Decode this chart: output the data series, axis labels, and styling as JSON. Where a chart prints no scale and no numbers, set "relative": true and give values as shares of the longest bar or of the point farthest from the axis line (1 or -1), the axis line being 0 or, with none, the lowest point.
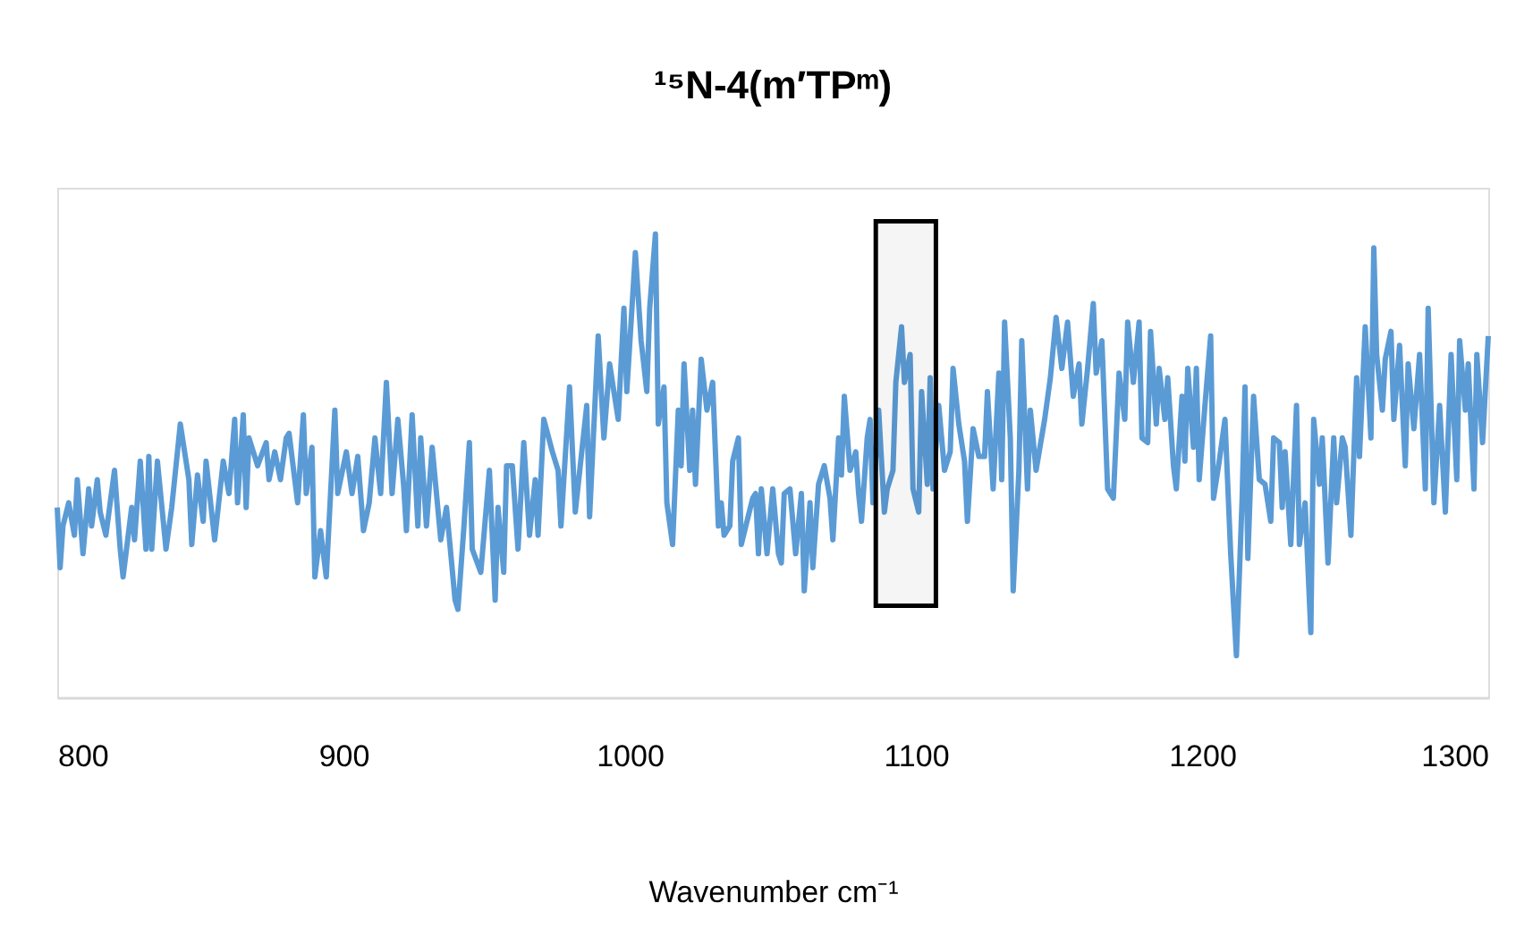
{
  "chart_data": {
    "type": "line",
    "title": "¹⁵N-4(m′TPᵐ)",
    "xlabel": "Wavenumber cm⁻¹",
    "relative": true,
    "xlim": [
      800,
      1300
    ],
    "xticks": [
      800,
      900,
      1000,
      1100,
      1200,
      1300
    ],
    "grid": false,
    "marker": "none",
    "line_style": "solid",
    "tick_labels": "x",
    "bands": [
      {
        "axis": "x",
        "from": 1086,
        "to": 1107,
        "label": null,
        "color": "#000000"
      }
    ],
    "series": [
      {
        "color": "#5b9bd5",
        "x": [
          800,
          801,
          802,
          804,
          806,
          807,
          809,
          811,
          812,
          814,
          815,
          817,
          820,
          822,
          823,
          826,
          827,
          829,
          831,
          832,
          833,
          835,
          838,
          840,
          843,
          846,
          847,
          849,
          851,
          852,
          855,
          858,
          860,
          862,
          863,
          865,
          866,
          867,
          870,
          873,
          874,
          876,
          878,
          880,
          881,
          884,
          886,
          887,
          889,
          890,
          892,
          894,
          897,
          898,
          901,
          903,
          905,
          907,
          909,
          911,
          913,
          915,
          917,
          919,
          921,
          922,
          924,
          926,
          927,
          929,
          931,
          934,
          936,
          939,
          940,
          942,
          944,
          945,
          948,
          951,
          953,
          954,
          956,
          957,
          959,
          961,
          963,
          965,
          967,
          968,
          970,
          973,
          975,
          976,
          979,
          981,
          985,
          986,
          989,
          991,
          993,
          996,
          998,
          999,
          1002,
          1004,
          1006,
          1007,
          1009,
          1010,
          1012,
          1013,
          1015,
          1017,
          1018,
          1019,
          1021,
          1022,
          1023,
          1025,
          1027,
          1029,
          1031,
          1032,
          1033,
          1035,
          1036,
          1038,
          1039,
          1041,
          1043,
          1044,
          1045,
          1046,
          1048,
          1050,
          1052,
          1053,
          1054,
          1056,
          1058,
          1060,
          1061,
          1063,
          1064,
          1066,
          1068,
          1070,
          1071,
          1073,
          1074,
          1075,
          1077,
          1079,
          1080,
          1081,
          1083,
          1084,
          1085,
          1087,
          1089,
          1090,
          1092,
          1093,
          1095,
          1096,
          1098,
          1099,
          1101,
          1102,
          1104,
          1105,
          1106,
          1108,
          1110,
          1112,
          1113,
          1115,
          1117,
          1118,
          1120,
          1122,
          1124,
          1125,
          1127,
          1129,
          1130,
          1131,
          1133,
          1134,
          1136,
          1137,
          1139,
          1140,
          1142,
          1145,
          1147,
          1149,
          1151,
          1153,
          1155,
          1157,
          1158,
          1160,
          1162,
          1163,
          1165,
          1167,
          1169,
          1171,
          1173,
          1174,
          1176,
          1178,
          1179,
          1181,
          1182,
          1184,
          1185,
          1187,
          1188,
          1190,
          1191,
          1193,
          1194,
          1195,
          1197,
          1198,
          1199,
          1201,
          1203,
          1204,
          1206,
          1208,
          1210,
          1212,
          1214,
          1215,
          1216,
          1218,
          1220,
          1222,
          1224,
          1225,
          1227,
          1228,
          1229,
          1231,
          1233,
          1234,
          1236,
          1238,
          1239,
          1241,
          1242,
          1244,
          1246,
          1247,
          1249,
          1250,
          1252,
          1254,
          1255,
          1257,
          1259,
          1260,
          1261,
          1263,
          1264,
          1266,
          1267,
          1269,
          1271,
          1272,
          1274,
          1276,
          1278,
          1279,
          1281,
          1283,
          1285,
          1287,
          1289,
          1290,
          1292,
          1293,
          1295,
          1296,
          1298,
          1300
        ],
        "values": [
          0.41,
          0.28,
          0.37,
          0.42,
          0.35,
          0.47,
          0.31,
          0.45,
          0.37,
          0.47,
          0.4,
          0.35,
          0.49,
          0.32,
          0.26,
          0.41,
          0.34,
          0.51,
          0.32,
          0.52,
          0.32,
          0.51,
          0.32,
          0.41,
          0.59,
          0.47,
          0.33,
          0.48,
          0.38,
          0.51,
          0.34,
          0.51,
          0.44,
          0.6,
          0.42,
          0.61,
          0.41,
          0.56,
          0.5,
          0.55,
          0.47,
          0.53,
          0.47,
          0.56,
          0.57,
          0.42,
          0.61,
          0.44,
          0.54,
          0.26,
          0.36,
          0.26,
          0.62,
          0.44,
          0.53,
          0.44,
          0.52,
          0.36,
          0.42,
          0.56,
          0.44,
          0.68,
          0.44,
          0.6,
          0.46,
          0.36,
          0.61,
          0.37,
          0.56,
          0.37,
          0.54,
          0.34,
          0.41,
          0.21,
          0.19,
          0.36,
          0.55,
          0.32,
          0.27,
          0.49,
          0.21,
          0.41,
          0.27,
          0.5,
          0.5,
          0.32,
          0.55,
          0.35,
          0.47,
          0.35,
          0.6,
          0.53,
          0.49,
          0.37,
          0.67,
          0.4,
          0.63,
          0.39,
          0.78,
          0.56,
          0.72,
          0.6,
          0.84,
          0.66,
          0.96,
          0.77,
          0.66,
          0.84,
          1.0,
          0.59,
          0.67,
          0.42,
          0.33,
          0.62,
          0.5,
          0.72,
          0.49,
          0.62,
          0.46,
          0.73,
          0.62,
          0.68,
          0.37,
          0.42,
          0.35,
          0.37,
          0.51,
          0.56,
          0.33,
          0.38,
          0.43,
          0.44,
          0.31,
          0.45,
          0.31,
          0.45,
          0.31,
          0.29,
          0.44,
          0.45,
          0.31,
          0.44,
          0.23,
          0.42,
          0.28,
          0.46,
          0.5,
          0.43,
          0.34,
          0.56,
          0.48,
          0.65,
          0.49,
          0.53,
          0.44,
          0.38,
          0.56,
          0.6,
          0.42,
          0.62,
          0.4,
          0.45,
          0.49,
          0.68,
          0.8,
          0.68,
          0.74,
          0.45,
          0.4,
          0.66,
          0.46,
          0.69,
          0.45,
          0.63,
          0.49,
          0.53,
          0.71,
          0.59,
          0.51,
          0.38,
          0.58,
          0.52,
          0.52,
          0.66,
          0.45,
          0.7,
          0.47,
          0.81,
          0.56,
          0.23,
          0.49,
          0.77,
          0.45,
          0.62,
          0.49,
          0.6,
          0.69,
          0.82,
          0.71,
          0.81,
          0.65,
          0.72,
          0.59,
          0.71,
          0.85,
          0.7,
          0.77,
          0.45,
          0.43,
          0.7,
          0.6,
          0.81,
          0.68,
          0.81,
          0.56,
          0.55,
          0.79,
          0.59,
          0.71,
          0.6,
          0.69,
          0.5,
          0.45,
          0.65,
          0.51,
          0.71,
          0.54,
          0.71,
          0.47,
          0.63,
          0.78,
          0.43,
          0.51,
          0.6,
          0.31,
          0.09,
          0.43,
          0.67,
          0.3,
          0.65,
          0.47,
          0.46,
          0.38,
          0.56,
          0.55,
          0.41,
          0.53,
          0.33,
          0.63,
          0.33,
          0.42,
          0.14,
          0.6,
          0.46,
          0.56,
          0.29,
          0.56,
          0.42,
          0.56,
          0.54,
          0.35,
          0.69,
          0.52,
          0.8,
          0.56,
          0.97,
          0.74,
          0.62,
          0.73,
          0.79,
          0.6,
          0.76,
          0.5,
          0.72,
          0.58,
          0.74,
          0.45,
          0.84,
          0.42,
          0.63,
          0.4,
          0.74,
          0.47,
          0.77,
          0.62,
          0.72,
          0.45,
          0.74,
          0.55,
          0.78
        ]
      }
    ]
  }
}
